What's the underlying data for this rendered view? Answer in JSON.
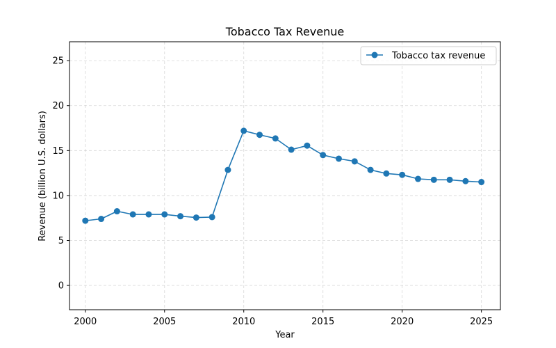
{
  "chart_data": {
    "type": "line",
    "title": "Tobacco Tax Revenue",
    "xlabel": "Year",
    "ylabel": "Revenue (billion U.S. dollars)",
    "xlim": [
      1999.0,
      2026.2
    ],
    "ylim": [
      -2.7,
      27.1
    ],
    "xticks": [
      2000,
      2005,
      2010,
      2015,
      2020,
      2025
    ],
    "yticks": [
      0,
      5,
      10,
      15,
      20,
      25
    ],
    "grid": true,
    "legend_position": "top-right",
    "series": [
      {
        "name": "Tobacco tax revenue",
        "color": "#1f77b4",
        "x": [
          2000,
          2001,
          2002,
          2003,
          2004,
          2005,
          2006,
          2007,
          2008,
          2009,
          2010,
          2011,
          2012,
          2013,
          2014,
          2015,
          2016,
          2017,
          2018,
          2019,
          2020,
          2021,
          2022,
          2023,
          2024,
          2025
        ],
        "y": [
          7.2,
          7.4,
          8.25,
          7.9,
          7.9,
          7.9,
          7.7,
          7.55,
          7.6,
          12.85,
          17.2,
          16.75,
          16.35,
          15.1,
          15.55,
          14.5,
          14.1,
          13.8,
          12.85,
          12.45,
          12.3,
          11.85,
          11.75,
          11.75,
          11.6,
          11.5
        ]
      }
    ]
  }
}
